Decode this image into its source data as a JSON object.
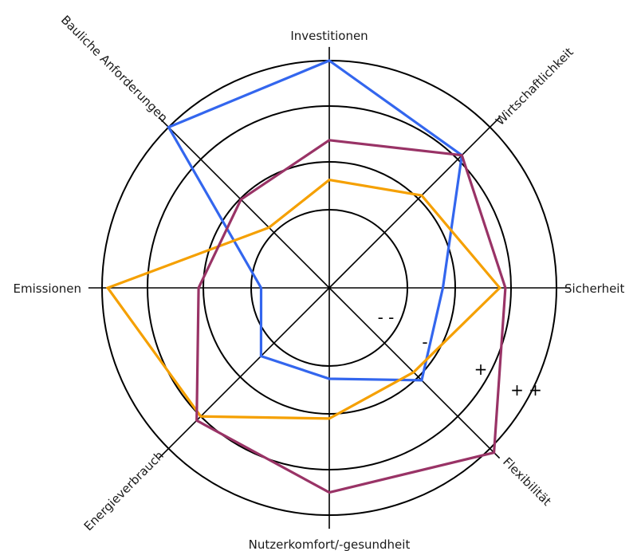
{
  "chart_data": {
    "type": "radar",
    "axes": [
      "Investitionen",
      "Wirtschaftlichkeit",
      "Sicherheit",
      "Flexibilität",
      "Nutzerkomfort/-gesundheit",
      "Energieverbrauch",
      "Emissionen",
      "Bauliche Anforderungen"
    ],
    "levels": [
      "- -",
      "-",
      "+",
      "+ +"
    ],
    "series": [
      {
        "color": "#3366ee",
        "values": [
          4,
          3.3,
          2,
          2.3,
          1.6,
          1.7,
          1.2,
          4
        ]
      },
      {
        "color": "#f5a000",
        "values": [
          1.9,
          2.3,
          3.0,
          2.1,
          2.3,
          3.2,
          3.9,
          1.5
        ]
      },
      {
        "color": "#993366",
        "values": [
          2.6,
          3.3,
          3.1,
          4.1,
          3.6,
          3.3,
          2.3,
          2.2
        ]
      }
    ],
    "rmax": 4,
    "grid": true
  }
}
